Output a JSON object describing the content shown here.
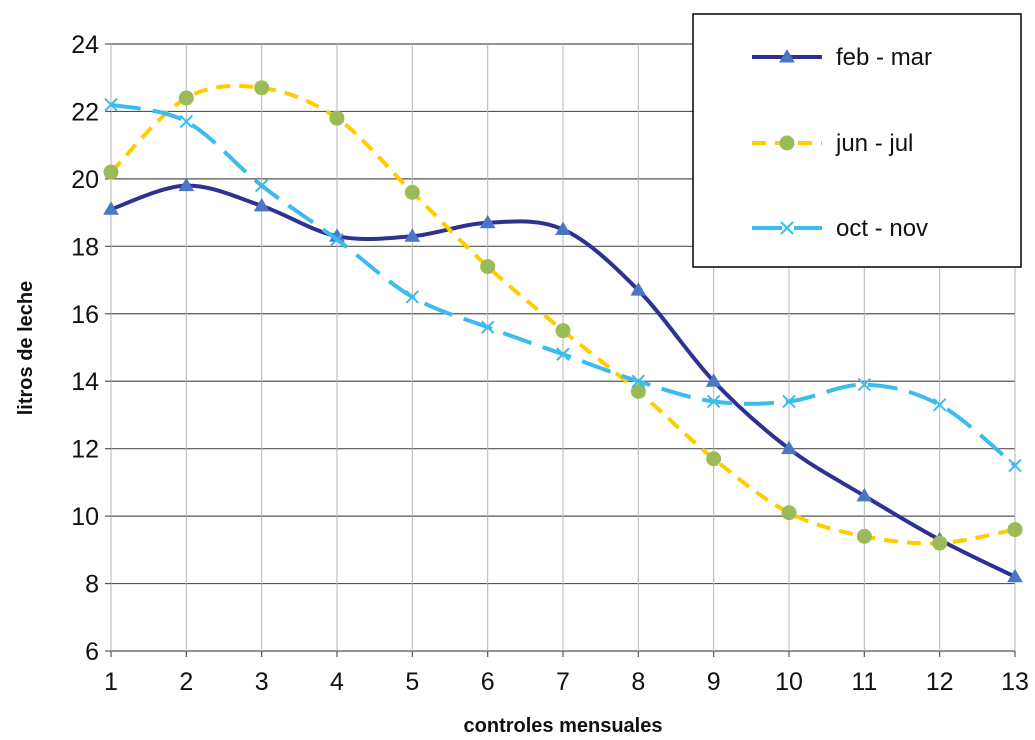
{
  "chart_data": {
    "type": "line",
    "title": "",
    "xlabel": "controles mensuales",
    "ylabel": "litros de leche",
    "x": [
      1,
      2,
      3,
      4,
      5,
      6,
      7,
      8,
      9,
      10,
      11,
      12,
      13
    ],
    "xlim": [
      1,
      13
    ],
    "ylim": [
      6,
      24
    ],
    "yticks": [
      6,
      8,
      10,
      12,
      14,
      16,
      18,
      20,
      22,
      24
    ],
    "grid": true,
    "legend_position": "top-right",
    "series": [
      {
        "name": "feb - mar",
        "color": "#2e3192",
        "dash": "solid",
        "marker": "triangle",
        "values": [
          19.1,
          19.8,
          19.2,
          18.3,
          18.3,
          18.7,
          18.5,
          16.7,
          14.0,
          12.0,
          10.6,
          9.3,
          8.2
        ]
      },
      {
        "name": "jun - jul",
        "color": "#ffcc00",
        "dash": "dashed",
        "marker": "circle",
        "values": [
          20.2,
          22.4,
          22.7,
          21.8,
          19.6,
          17.4,
          15.5,
          13.7,
          11.7,
          10.1,
          9.4,
          9.2,
          9.6
        ]
      },
      {
        "name": "oct - nov",
        "color": "#3bbcec",
        "dash": "longdash",
        "marker": "x",
        "values": [
          22.2,
          21.7,
          19.8,
          18.2,
          16.5,
          15.6,
          14.8,
          14.0,
          13.4,
          13.4,
          13.9,
          13.3,
          11.5
        ]
      }
    ]
  }
}
